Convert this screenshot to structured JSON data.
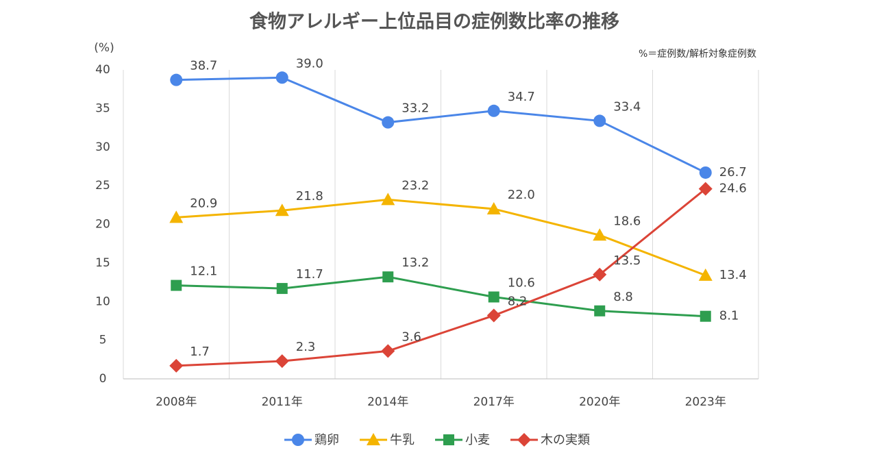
{
  "chart_data": {
    "type": "line",
    "title": "食物アレルギー上位品目の症例数比率の推移",
    "y_axis_label": "(%)",
    "note": "%＝症例数/解析対象症例数",
    "categories": [
      "2008年",
      "2011年",
      "2014年",
      "2017年",
      "2020年",
      "2023年"
    ],
    "series": [
      {
        "name": "鶏卵",
        "color": "#4a86e8",
        "marker": "circle",
        "values": [
          38.7,
          39.0,
          33.2,
          34.7,
          33.4,
          26.7
        ],
        "value_labels": [
          "38.7",
          "39.0",
          "33.2",
          "34.7",
          "33.4",
          "26.7"
        ]
      },
      {
        "name": "牛乳",
        "color": "#f4b400",
        "marker": "triangle",
        "values": [
          20.9,
          21.8,
          23.2,
          22.0,
          18.6,
          13.4
        ],
        "value_labels": [
          "20.9",
          "21.8",
          "23.2",
          "22.0",
          "18.6",
          "13.4"
        ]
      },
      {
        "name": "小麦",
        "color": "#2e9e4f",
        "marker": "square",
        "values": [
          12.1,
          11.7,
          13.2,
          10.6,
          8.8,
          8.1
        ],
        "value_labels": [
          "12.1",
          "11.7",
          "13.2",
          "10.6",
          "8.8",
          "8.1"
        ]
      },
      {
        "name": "木の実類",
        "color": "#db4437",
        "marker": "diamond",
        "values": [
          1.7,
          2.3,
          3.6,
          8.2,
          13.5,
          24.6
        ],
        "value_labels": [
          "1.7",
          "2.3",
          "3.6",
          "8.2",
          "13.5",
          "24.6"
        ]
      }
    ],
    "ylim": [
      0,
      40
    ],
    "yticks": [
      0,
      5,
      10,
      15,
      20,
      25,
      30,
      35,
      40
    ],
    "grid": true,
    "legend": "bottom"
  }
}
